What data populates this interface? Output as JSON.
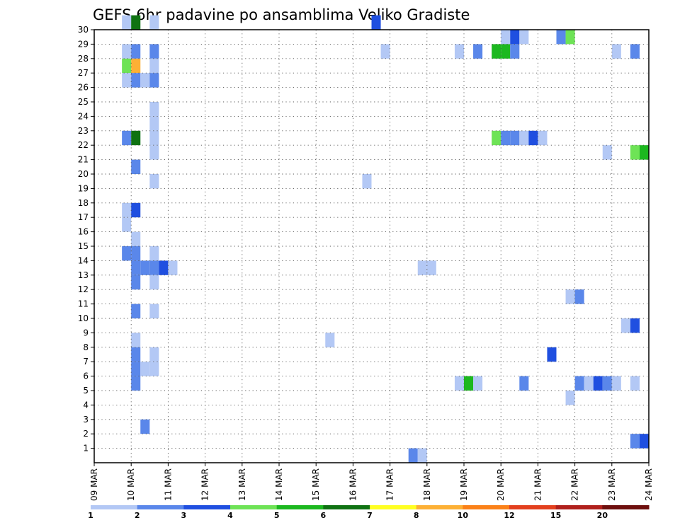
{
  "chart_data": {
    "type": "heatmap",
    "title": "GEFS 6hr padavine po ansamblima Veliko Gradiste",
    "xlabel": "",
    "ylabel": "",
    "x_ticks": [
      "09 MAR",
      "10 MAR",
      "11 MAR",
      "12 MAR",
      "13 MAR",
      "14 MAR",
      "15 MAR",
      "16 MAR",
      "17 MAR",
      "18 MAR",
      "19 MAR",
      "20 MAR",
      "21 MAR",
      "22 MAR",
      "23 MAR",
      "24 MAR"
    ],
    "y_ticks": [
      "1",
      "2",
      "3",
      "4",
      "5",
      "6",
      "7",
      "8",
      "9",
      "10",
      "11",
      "12",
      "13",
      "14",
      "15",
      "16",
      "17",
      "18",
      "19",
      "20",
      "21",
      "22",
      "23",
      "24",
      "25",
      "26",
      "27",
      "28",
      "29",
      "30"
    ],
    "xlim": [
      0,
      60
    ],
    "ylim": [
      0,
      30
    ],
    "grid": true,
    "colorbar": {
      "placement": "bottom",
      "labels": [
        "1",
        "2",
        "3",
        "4",
        "5",
        "6",
        "7",
        "8",
        "10",
        "12",
        "15",
        "20"
      ],
      "colors": [
        "#b3c8f5",
        "#5a87ea",
        "#1f4fe0",
        "#6ee356",
        "#1cb81f",
        "#0f7212",
        "#ffff22",
        "#fdb035",
        "#fb8118",
        "#e3401e",
        "#b0201c",
        "#6e0f0e"
      ]
    },
    "cells": [
      {
        "m": 30,
        "t": [
          [
            4,
            1
          ],
          [
            5,
            6
          ],
          [
            7,
            1
          ],
          [
            31,
            3
          ]
        ]
      },
      {
        "m": 29,
        "t": [
          [
            45,
            1
          ],
          [
            46,
            3
          ],
          [
            47,
            1
          ],
          [
            51,
            2
          ],
          [
            52,
            4
          ]
        ]
      },
      {
        "m": 28,
        "t": [
          [
            4,
            1
          ],
          [
            5,
            2
          ],
          [
            7,
            2
          ],
          [
            32,
            1
          ],
          [
            40,
            1
          ],
          [
            42,
            2
          ],
          [
            44,
            5
          ],
          [
            45,
            5
          ],
          [
            46,
            2
          ],
          [
            57,
            1
          ],
          [
            59,
            2
          ]
        ]
      },
      {
        "m": 27,
        "t": [
          [
            4,
            4
          ],
          [
            5,
            8
          ],
          [
            7,
            1
          ]
        ]
      },
      {
        "m": 26,
        "t": [
          [
            4,
            1
          ],
          [
            5,
            2
          ],
          [
            6,
            1
          ],
          [
            7,
            2
          ]
        ]
      },
      {
        "m": 24,
        "t": [
          [
            7,
            1
          ]
        ]
      },
      {
        "m": 23,
        "t": [
          [
            7,
            1
          ]
        ]
      },
      {
        "m": 22,
        "t": [
          [
            4,
            2
          ],
          [
            5,
            6
          ],
          [
            7,
            1
          ],
          [
            44,
            4
          ],
          [
            45,
            2
          ],
          [
            46,
            2
          ],
          [
            47,
            1
          ],
          [
            48,
            3
          ],
          [
            49,
            1
          ]
        ]
      },
      {
        "m": 21,
        "t": [
          [
            7,
            1
          ],
          [
            56,
            1
          ],
          [
            59,
            4
          ],
          [
            60,
            5
          ]
        ]
      },
      {
        "m": 20,
        "t": [
          [
            5,
            2
          ]
        ]
      },
      {
        "m": 19,
        "t": [
          [
            7,
            1
          ],
          [
            30,
            1
          ]
        ]
      },
      {
        "m": 17,
        "t": [
          [
            4,
            1
          ],
          [
            5,
            3
          ]
        ]
      },
      {
        "m": 16,
        "t": [
          [
            4,
            1
          ]
        ]
      },
      {
        "m": 15,
        "t": [
          [
            5,
            1
          ]
        ]
      },
      {
        "m": 14,
        "t": [
          [
            4,
            2
          ],
          [
            5,
            2
          ],
          [
            7,
            1
          ]
        ]
      },
      {
        "m": 13,
        "t": [
          [
            5,
            2
          ],
          [
            6,
            2
          ],
          [
            7,
            2
          ],
          [
            8,
            3
          ],
          [
            9,
            1
          ],
          [
            36,
            1
          ],
          [
            37,
            1
          ]
        ]
      },
      {
        "m": 12,
        "t": [
          [
            5,
            2
          ],
          [
            7,
            1
          ]
        ]
      },
      {
        "m": 11,
        "t": [
          [
            52,
            1
          ],
          [
            53,
            2
          ]
        ]
      },
      {
        "m": 10,
        "t": [
          [
            5,
            2
          ],
          [
            7,
            1
          ]
        ]
      },
      {
        "m": 9,
        "t": [
          [
            58,
            1
          ],
          [
            59,
            3
          ]
        ]
      },
      {
        "m": 8,
        "t": [
          [
            5,
            1
          ],
          [
            26,
            1
          ]
        ]
      },
      {
        "m": 7,
        "t": [
          [
            5,
            2
          ],
          [
            7,
            1
          ],
          [
            50,
            3
          ]
        ]
      },
      {
        "m": 6,
        "t": [
          [
            5,
            2
          ],
          [
            6,
            1
          ],
          [
            7,
            1
          ]
        ]
      },
      {
        "m": 5,
        "t": [
          [
            5,
            2
          ],
          [
            40,
            1
          ],
          [
            41,
            5
          ],
          [
            42,
            1
          ],
          [
            47,
            2
          ],
          [
            53,
            2
          ],
          [
            54,
            1
          ],
          [
            55,
            3
          ],
          [
            56,
            2
          ],
          [
            57,
            1
          ],
          [
            59,
            1
          ]
        ]
      },
      {
        "m": 4,
        "t": [
          [
            52,
            1
          ]
        ]
      },
      {
        "m": 2,
        "t": [
          [
            6,
            2
          ]
        ]
      },
      {
        "m": 1,
        "t": [
          [
            59,
            2
          ],
          [
            60,
            3
          ]
        ]
      },
      {
        "m": 0,
        "t": [
          [
            35,
            2
          ],
          [
            36,
            1
          ]
        ]
      }
    ]
  }
}
